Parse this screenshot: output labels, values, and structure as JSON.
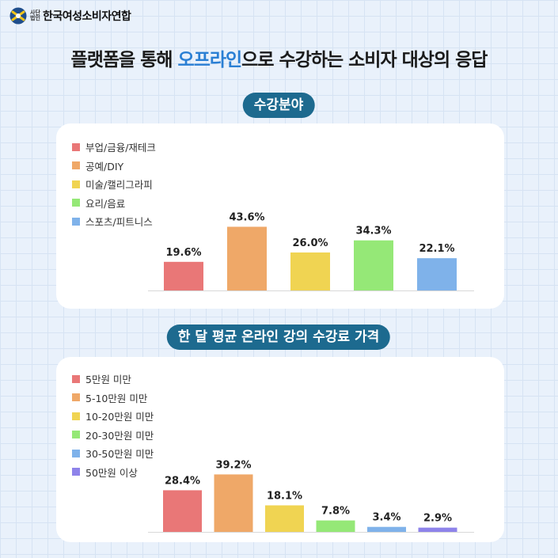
{
  "logo": {
    "small": "사단법인",
    "name": "한국여성소비자연합"
  },
  "headline": {
    "before": "플랫폼을 통해 ",
    "accent": "오프라인",
    "after": "으로 수강하는 소비자 대상의 응답"
  },
  "colors": {
    "accent": "#2a7fd4",
    "pill": "#1d6a8f"
  },
  "chart_data": [
    {
      "type": "bar",
      "title": "수강분야",
      "categories": [
        "부업/금융/재테크",
        "공예/DIY",
        "미술/캘리그라피",
        "요리/음료",
        "스포츠/피트니스"
      ],
      "values": [
        19.6,
        43.6,
        26.0,
        34.3,
        22.1
      ],
      "data_labels": [
        "19.6%",
        "43.6%",
        "26.0%",
        "34.3%",
        "22.1%"
      ],
      "colors": [
        "#e97777",
        "#efa868",
        "#f0d452",
        "#95e877",
        "#7fb2ea"
      ],
      "ylim": [
        0,
        50
      ],
      "legend": "top-left",
      "grid": false
    },
    {
      "type": "bar",
      "title": "한 달 평균 온라인 강의 수강료 가격",
      "categories": [
        "5만원 미만",
        "5-10만원 미만",
        "10-20만원 미만",
        "20-30만원 미만",
        "30-50만원 미만",
        "50만원 이상"
      ],
      "values": [
        28.4,
        39.2,
        18.1,
        7.8,
        3.4,
        2.9
      ],
      "data_labels": [
        "28.4%",
        "39.2%",
        "18.1%",
        "7.8%",
        "3.4%",
        "2.9%"
      ],
      "colors": [
        "#e97777",
        "#efa868",
        "#f0d452",
        "#95e877",
        "#7fb2ea",
        "#8e83ea"
      ],
      "ylim": [
        0,
        50
      ],
      "legend": "top-left",
      "grid": false
    }
  ]
}
